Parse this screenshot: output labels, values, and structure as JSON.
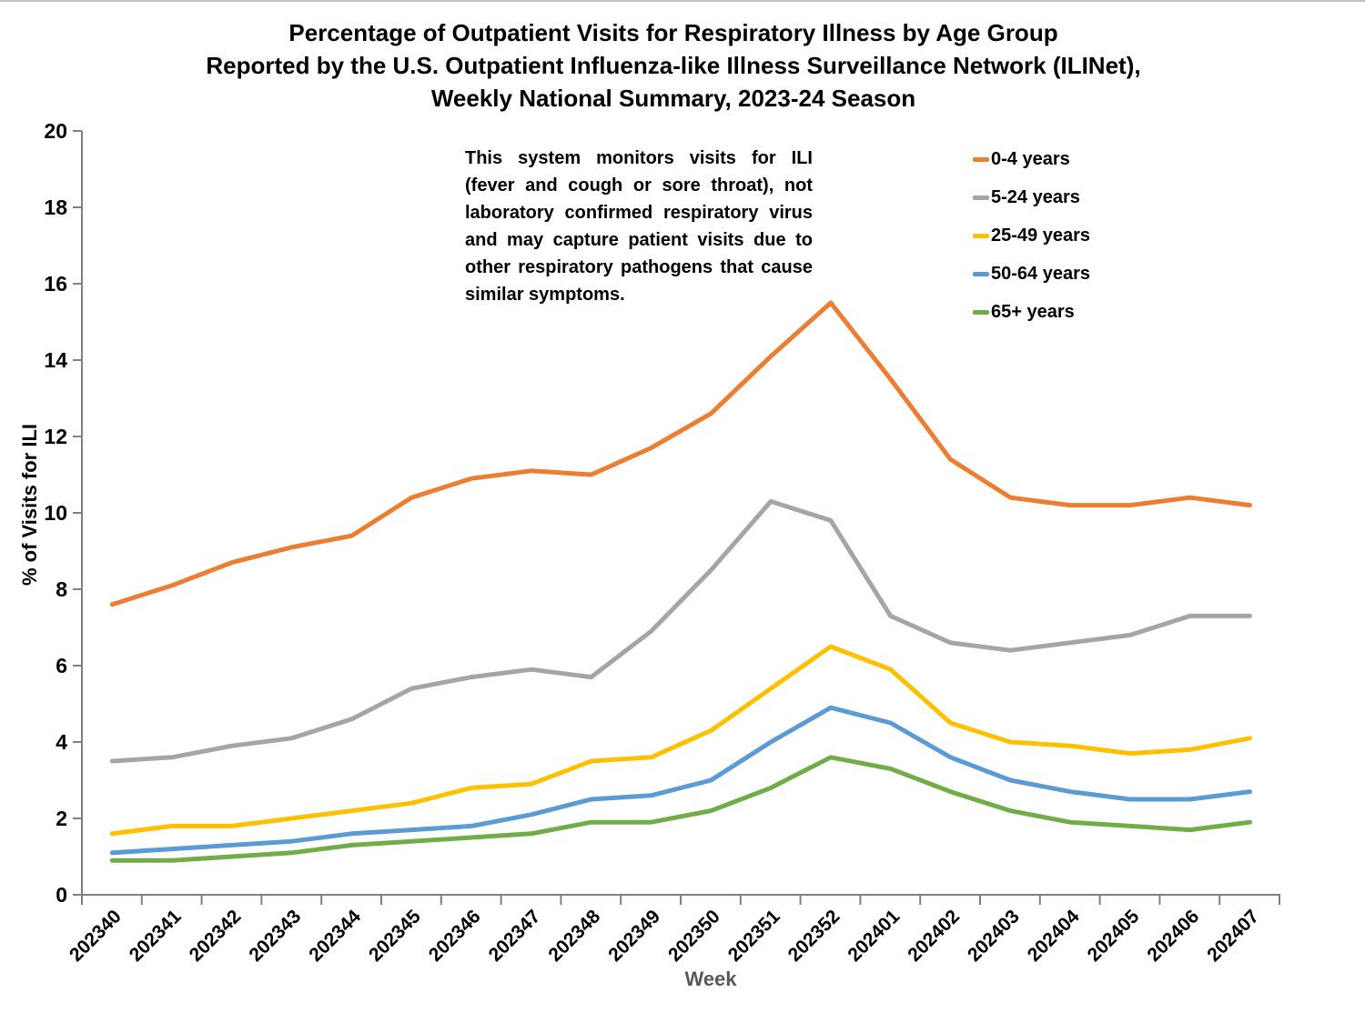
{
  "title": {
    "line1": "Percentage of Outpatient Visits for Respiratory Illness by Age Group",
    "line2": "Reported by the U.S. Outpatient Influenza-like Illness Surveillance Network (ILINet),",
    "line3": "Weekly National Summary, 2023-24 Season"
  },
  "annotation": "This system monitors visits for ILI (fever and cough or sore throat), not laboratory confirmed respiratory virus and may capture patient visits due to other respiratory pathogens that cause similar symptoms.",
  "colors": {
    "axis": "#7F7F7F",
    "tick_label": "#000000",
    "xlabel_title": "#595959",
    "ylabel_title": "#000000"
  },
  "chart_data": {
    "type": "line",
    "title": "Percentage of Outpatient Visits for Respiratory Illness by Age Group, ILINet, Weekly National Summary, 2023-24 Season",
    "x": [
      "202340",
      "202341",
      "202342",
      "202343",
      "202344",
      "202345",
      "202346",
      "202347",
      "202348",
      "202349",
      "202350",
      "202351",
      "202352",
      "202401",
      "202402",
      "202403",
      "202404",
      "202405",
      "202406",
      "202407"
    ],
    "xlabel": "Week",
    "ylabel": "% of Visits for ILI",
    "ylim": [
      0,
      20
    ],
    "ytick_step": 2,
    "grid": false,
    "legend_position": "upper-right-inside",
    "series": [
      {
        "name": "0-4 years",
        "color": "#ED7D31",
        "values": [
          7.6,
          8.1,
          8.7,
          9.1,
          9.4,
          10.4,
          10.9,
          11.1,
          11.0,
          11.7,
          12.6,
          14.1,
          15.5,
          13.5,
          11.4,
          10.4,
          10.2,
          10.2,
          10.4,
          10.2
        ]
      },
      {
        "name": "5-24 years",
        "color": "#A5A5A5",
        "values": [
          3.5,
          3.6,
          3.9,
          4.1,
          4.6,
          5.4,
          5.7,
          5.9,
          5.7,
          6.9,
          8.5,
          10.3,
          9.8,
          7.3,
          6.6,
          6.4,
          6.6,
          6.8,
          7.3,
          7.3
        ]
      },
      {
        "name": "25-49 years",
        "color": "#FFC000",
        "values": [
          1.6,
          1.8,
          1.8,
          2.0,
          2.2,
          2.4,
          2.8,
          2.9,
          3.5,
          3.6,
          4.3,
          5.4,
          6.5,
          5.9,
          4.5,
          4.0,
          3.9,
          3.7,
          3.8,
          4.1
        ]
      },
      {
        "name": "50-64 years",
        "color": "#5B9BD5",
        "values": [
          1.1,
          1.2,
          1.3,
          1.4,
          1.6,
          1.7,
          1.8,
          2.1,
          2.5,
          2.6,
          3.0,
          4.0,
          4.9,
          4.5,
          3.6,
          3.0,
          2.7,
          2.5,
          2.5,
          2.7
        ]
      },
      {
        "name": "65+ years",
        "color": "#70AD47",
        "values": [
          0.9,
          0.9,
          1.0,
          1.1,
          1.3,
          1.4,
          1.5,
          1.6,
          1.9,
          1.9,
          2.2,
          2.8,
          3.6,
          3.3,
          2.7,
          2.2,
          1.9,
          1.8,
          1.7,
          1.9
        ]
      }
    ]
  }
}
